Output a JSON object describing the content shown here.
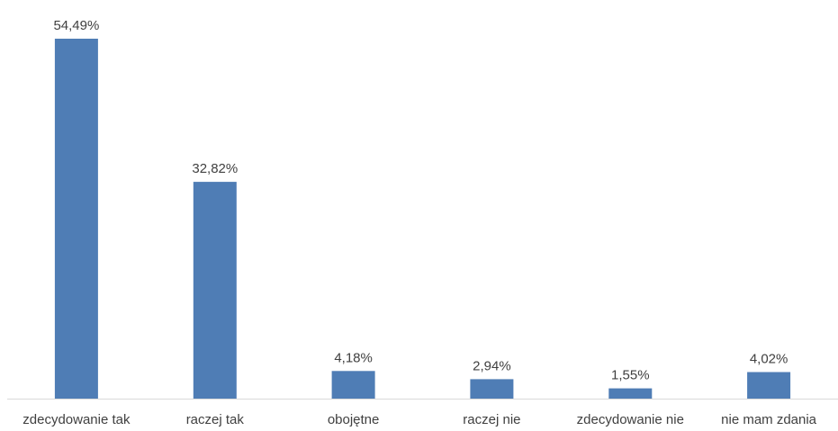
{
  "chart_data": {
    "type": "bar",
    "title": "",
    "xlabel": "",
    "ylabel": "",
    "categories": [
      "zdecydowanie tak",
      "raczej tak",
      "obojętne",
      "raczej nie",
      "zdecydowanie nie",
      "nie mam zdania"
    ],
    "values": [
      54.49,
      32.82,
      4.18,
      2.94,
      1.55,
      4.02
    ],
    "value_labels": [
      "54,49%",
      "32,82%",
      "4,18%",
      "2,94%",
      "1,55%",
      "4,02%"
    ],
    "ylim": [
      0,
      54.49
    ],
    "grid": false,
    "legend": "none",
    "colors": {
      "bar": "#4F7DB5",
      "axis": "#D9D9D9",
      "text": "#404040"
    }
  }
}
